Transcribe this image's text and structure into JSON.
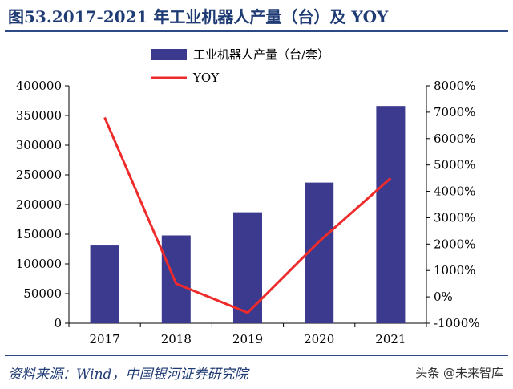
{
  "title": "图53.2017-2021 年工业机器人产量（台）及 YOY",
  "source": "资料来源：Wind，中国银河证券研究院",
  "watermark": "头条 @未来智库",
  "colors": {
    "bar": "#3c3a8f",
    "line": "#ee2b2b",
    "title": "#1f3b73"
  },
  "chart_data": {
    "type": "bar+line",
    "categories": [
      "2017",
      "2018",
      "2019",
      "2020",
      "2021"
    ],
    "series": [
      {
        "name": "工业机器人产量（台/套）",
        "type": "bar",
        "axis": "left",
        "values": [
          131000,
          148000,
          187000,
          237000,
          366000
        ]
      },
      {
        "name": "YOY",
        "type": "line",
        "axis": "right",
        "values": [
          6800,
          500,
          -600,
          2100,
          4500
        ]
      }
    ],
    "y_left": {
      "ylim": [
        0,
        400000
      ],
      "ticks": [
        "0",
        "50000",
        "100000",
        "150000",
        "200000",
        "250000",
        "300000",
        "350000",
        "400000"
      ]
    },
    "y_right": {
      "ylim": [
        -1000,
        8000
      ],
      "ticks": [
        "-1000%",
        "0%",
        "1000%",
        "2000%",
        "3000%",
        "4000%",
        "5000%",
        "6000%",
        "7000%",
        "8000%"
      ]
    },
    "legend": "top-center"
  }
}
